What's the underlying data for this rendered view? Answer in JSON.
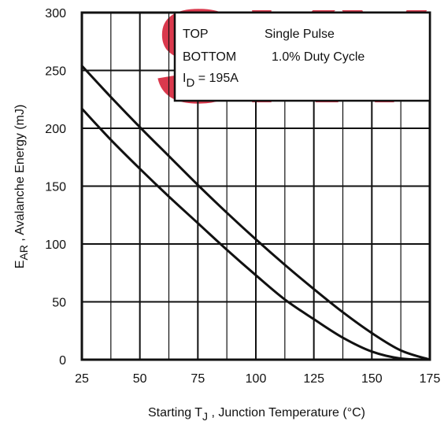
{
  "colors": {
    "watermark": "#d6243a",
    "ink": "#111111",
    "background": "#ffffff"
  },
  "watermark": {
    "text": "SKY"
  },
  "chart_data": {
    "type": "line",
    "xlabel": {
      "prefix": "Starting T",
      "sub": "J",
      "suffix": " , Junction Temperature (°C)"
    },
    "ylabel": {
      "prefix": "E",
      "sub": "AR",
      "suffix": " , Avalanche Energy (mJ)"
    },
    "xlim": [
      25,
      175
    ],
    "ylim": [
      0,
      300
    ],
    "x_ticks": [
      25,
      50,
      75,
      100,
      125,
      150,
      175
    ],
    "y_ticks": [
      0,
      50,
      100,
      150,
      200,
      250,
      300
    ],
    "grid": true,
    "legend": {
      "placement": "top-right",
      "rows": [
        {
          "label": "TOP",
          "value": "Single Pulse"
        },
        {
          "label": "BOTTOM",
          "value": "1.0% Duty Cycle"
        }
      ],
      "id_prefix": "I",
      "id_sub": "D",
      "id_value": " = 195A"
    },
    "series": [
      {
        "x": [
          25,
          37.5,
          50,
          62.5,
          75,
          87.5,
          100,
          112.5,
          125,
          137.5,
          150,
          162.5,
          175
        ],
        "y": [
          254,
          227,
          201,
          176,
          151,
          127,
          104,
          82,
          61,
          41,
          23,
          8,
          0
        ]
      },
      {
        "x": [
          25,
          37.5,
          50,
          62.5,
          75,
          87.5,
          100,
          112.5,
          125,
          137.5,
          150,
          162.5,
          175
        ],
        "y": [
          217,
          190,
          165,
          141,
          118,
          95,
          73,
          52,
          35,
          19,
          7,
          1,
          0
        ]
      }
    ]
  }
}
